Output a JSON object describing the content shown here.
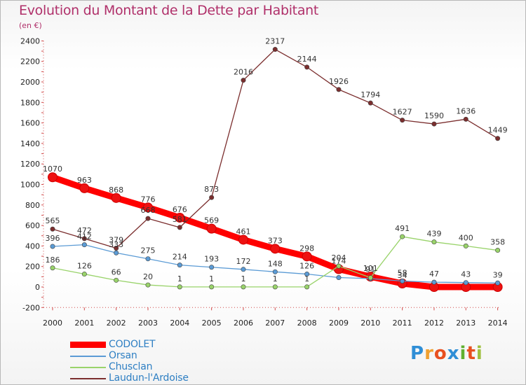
{
  "title": "Evolution du Montant de la Dette par Habitant",
  "unit": "(en €)",
  "chart_data": {
    "type": "line",
    "x": [
      "2000",
      "2001",
      "2002",
      "2003",
      "2004",
      "2005",
      "2006",
      "2007",
      "2008",
      "2009",
      "2010",
      "2011",
      "2012",
      "2013",
      "2014"
    ],
    "ylim": [
      -200,
      2400
    ],
    "yticks": [
      -200,
      0,
      200,
      400,
      600,
      800,
      1000,
      1200,
      1400,
      1600,
      1800,
      2000,
      2200,
      2400
    ],
    "grid": false,
    "legend_placement": "bottom-left",
    "series": [
      {
        "name": "CODOLET",
        "color": "#ff0000",
        "values": [
          1070,
          963,
          868,
          776,
          676,
          569,
          461,
          373,
          298,
          174,
          101,
          34,
          0,
          0,
          0
        ],
        "labels": [
          "1070",
          "963",
          "868",
          "776",
          "676",
          "569",
          "461",
          "373",
          "298",
          "174",
          "101",
          "34",
          "",
          "",
          ""
        ]
      },
      {
        "name": "Orsan",
        "color": "#5b9bd5",
        "values": [
          396,
          412,
          333,
          275,
          214,
          193,
          172,
          148,
          126,
          92,
          82,
          58,
          47,
          43,
          39
        ],
        "labels": [
          "396",
          "412",
          "333",
          "275",
          "214",
          "193",
          "172",
          "148",
          "126",
          "",
          "",
          "58",
          "47",
          "43",
          "39"
        ]
      },
      {
        "name": "Chusclan",
        "color": "#99d36a",
        "values": [
          186,
          126,
          66,
          20,
          1,
          1,
          1,
          1,
          1,
          204,
          91,
          491,
          439,
          400,
          358
        ],
        "labels": [
          "186",
          "126",
          "66",
          "20",
          "1",
          "1",
          "1",
          "1",
          "1",
          "204",
          "91",
          "491",
          "439",
          "400",
          "358"
        ]
      },
      {
        "name": "Laudun-l'Ardoise",
        "color": "#7b2e2e",
        "values": [
          565,
          472,
          379,
          668,
          581,
          873,
          2016,
          2317,
          2144,
          1926,
          1794,
          1627,
          1590,
          1636,
          1449
        ],
        "labels": [
          "565",
          "472",
          "379",
          "668",
          "581",
          "873",
          "2016",
          "2317",
          "2144",
          "1926",
          "1794",
          "1627",
          "1590",
          "1636",
          "1449"
        ]
      }
    ]
  },
  "logo": {
    "letters": [
      "P",
      "r",
      "o",
      "x",
      "i",
      "t",
      "i"
    ],
    "colors": [
      "#2f8ed6",
      "#f0a030",
      "#e85020",
      "#2f8ed6",
      "#60b030",
      "#e85020",
      "#a0c040"
    ]
  }
}
